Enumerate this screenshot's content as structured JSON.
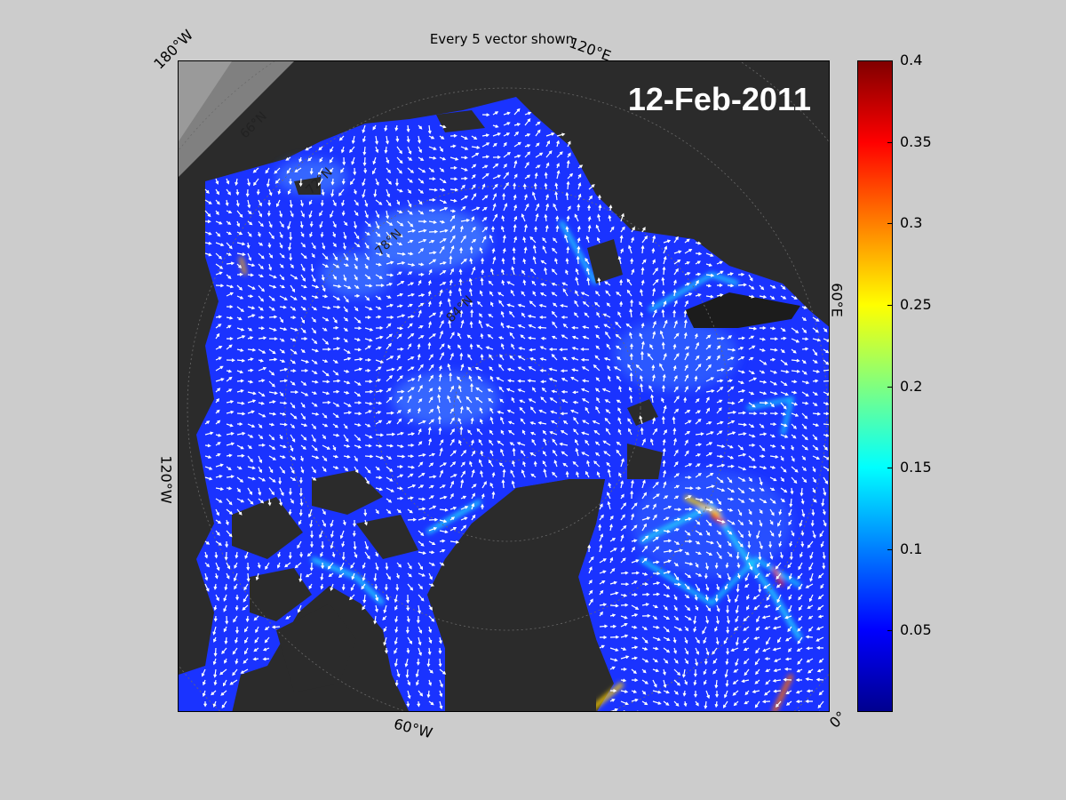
{
  "title": "Every 5 vector shown",
  "date": "12-Feb-2011",
  "longitude_labels": {
    "lon_180w": "180°W",
    "lon_120e": "120°E",
    "lon_60e": "60°E",
    "lon_120w": "120°W",
    "lon_60w": "60°W",
    "lon_0": "0°"
  },
  "latitude_labels": {
    "lat_66n": "66°N",
    "lat_72n": "72°N",
    "lat_78n": "78°N",
    "lat_84n": "84°N"
  },
  "colorbar": {
    "min": 0,
    "max": 0.4,
    "colormap": "jet",
    "ticks": [
      0.05,
      0.1,
      0.15,
      0.2,
      0.25,
      0.3,
      0.35,
      0.4
    ],
    "tick_labels": [
      "0.05",
      "0.1",
      "0.15",
      "0.2",
      "0.25",
      "0.3",
      "0.35",
      "0.4"
    ]
  },
  "colors": {
    "ocean_field": "#1a33ff",
    "land": "#2b2b2b",
    "outside_domain": "#808080",
    "vectors": "#ffffff",
    "background": "#cccccc"
  }
}
